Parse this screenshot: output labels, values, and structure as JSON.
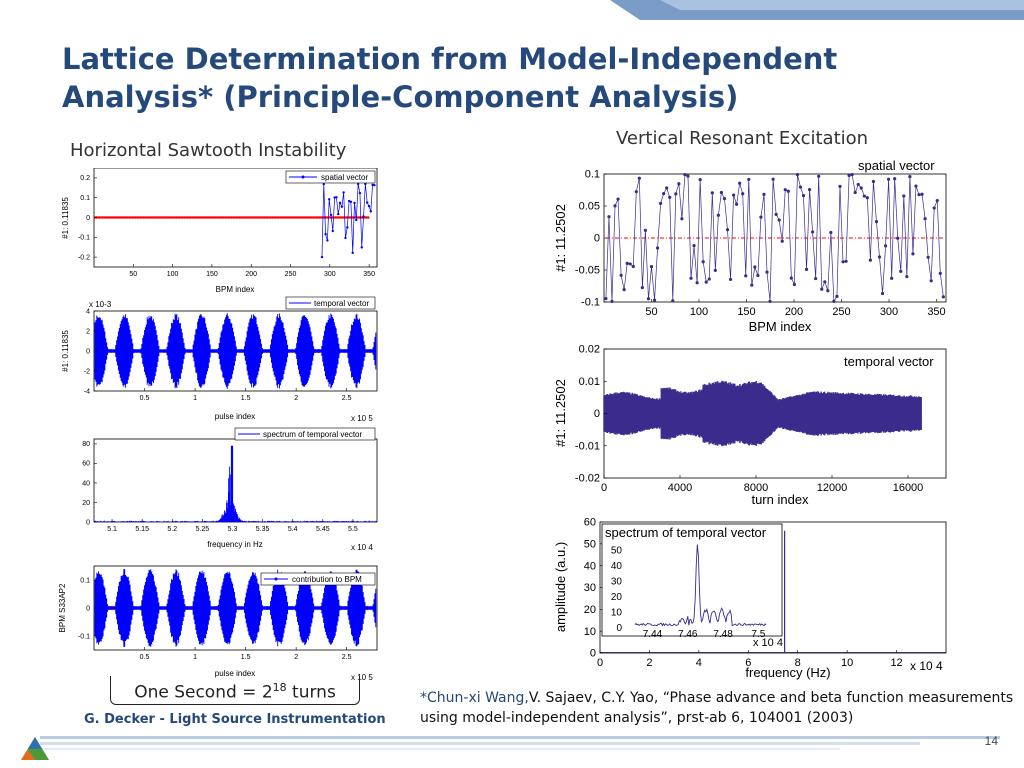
{
  "slide": {
    "title_line1": "Lattice Determination from Model-Independent",
    "title_line2": "Analysis* (Principle-Component Analysis)",
    "left_subtitle": "Horizontal Sawtooth Instability",
    "right_subtitle": "Vertical Resonant Excitation",
    "turns_text": "One Second = 2",
    "turns_exp": "18",
    "turns_suffix": " turns",
    "ref_author": "*Chun-xi Wang,",
    "ref_rest": "V. Sajaev, C.Y. Yao, “Phase advance and beta function measurements using model-independent analysis”, prst-ab 6, 104001 (2003)",
    "footer": "G. Decker - Light Source Instrumentation",
    "page_number": "14",
    "colors": {
      "title": "#24497a",
      "blue": "#0000ff",
      "purple": "#3a2b8c",
      "red": "#ff0000"
    }
  },
  "chart_data": [
    {
      "type": "scatter",
      "legend": "spatial vector",
      "xlabel": "BPM index",
      "ylabel": "#1: 0.11835",
      "xlim": [
        0,
        360
      ],
      "ylim": [
        -0.25,
        0.25
      ],
      "xticks": [
        "50",
        "100",
        "150",
        "200",
        "250",
        "300",
        "350"
      ],
      "yticks": [
        "0.2",
        "0.1",
        "0",
        "-0.1",
        "-0.2"
      ]
    },
    {
      "type": "line",
      "legend": "temporal vector",
      "xlabel": "pulse index",
      "ylabel": "#1: 0.11835",
      "multiplier_y": "x 10-3",
      "multiplier_x": "x 10 5",
      "xlim": [
        0,
        2.8
      ],
      "ylim": [
        -4,
        4
      ],
      "xticks": [
        "0.5",
        "1",
        "1.5",
        "2",
        "2.5"
      ],
      "yticks": [
        "4",
        "2",
        "0",
        "-2",
        "-4"
      ]
    },
    {
      "type": "line",
      "legend": "spectrum of temporal vector",
      "xlabel": "frequency in Hz",
      "multiplier_x": "x 10 4",
      "xlim": [
        5.07,
        5.54
      ],
      "ylim": [
        0,
        85
      ],
      "xticks": [
        "5.1",
        "5.15",
        "5.2",
        "5.25",
        "5.3",
        "5.35",
        "5.4",
        "5.45",
        "5.5"
      ],
      "yticks": [
        "80",
        "60",
        "40",
        "20",
        "0"
      ]
    },
    {
      "type": "line",
      "legend": "contribution to BPM",
      "xlabel": "pulse index",
      "ylabel": "BPM S33AP2",
      "multiplier_x": "x 10 5",
      "xlim": [
        0,
        2.8
      ],
      "ylim": [
        -0.15,
        0.15
      ],
      "xticks": [
        "0.5",
        "1",
        "1.5",
        "2",
        "2.5"
      ],
      "yticks": [
        "0.1",
        "0",
        "-0.1"
      ]
    },
    {
      "type": "scatter",
      "title": "spatial vector",
      "xlabel": "BPM index",
      "ylabel": "#1: 11.2502",
      "xlim": [
        0,
        360
      ],
      "ylim": [
        -0.1,
        0.1
      ],
      "xticks": [
        "50",
        "100",
        "150",
        "200",
        "250",
        "300",
        "350"
      ],
      "yticks": [
        "0.1",
        "0.05",
        "0",
        "-0.05",
        "-0.1"
      ]
    },
    {
      "type": "line",
      "title": "temporal vector",
      "xlabel": "turn index",
      "ylabel": "#1: 11.2502",
      "xlim": [
        0,
        18000
      ],
      "ylim": [
        -0.02,
        0.02
      ],
      "xticks": [
        "0",
        "4000",
        "8000",
        "12000",
        "16000"
      ],
      "yticks": [
        "0.02",
        "0.01",
        "0",
        "-0.01",
        "-0.02"
      ]
    },
    {
      "type": "line",
      "title": "spectrum of temporal vector",
      "xlabel": "frequency (Hz)",
      "ylabel": "amplitude (a.u.)",
      "multiplier_x": "x 10 4",
      "xlim": [
        0,
        140000
      ],
      "ylim": [
        0,
        60
      ],
      "xticks": [
        "0",
        "2",
        "4",
        "6",
        "8",
        "10",
        "12"
      ],
      "yticks": [
        "60",
        "50",
        "40",
        "30",
        "20",
        "10",
        "0"
      ],
      "inset": {
        "xticks": [
          "7.44",
          "7.46",
          "7.48",
          "7.5"
        ],
        "multiplier_x": "x 10 4",
        "yticks": [
          "50",
          "40",
          "30",
          "20",
          "10",
          "0"
        ]
      }
    }
  ]
}
